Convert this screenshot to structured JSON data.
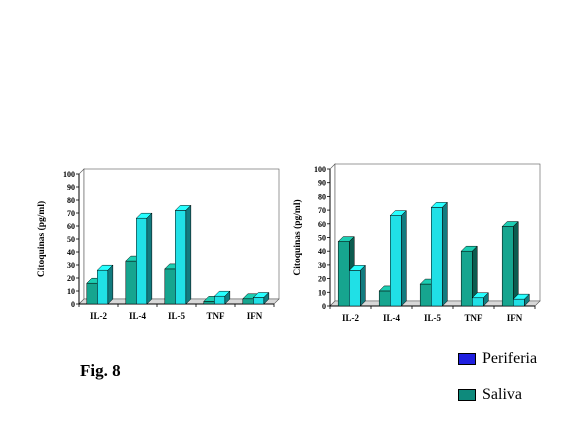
{
  "caption": "Fig. 8",
  "legend": [
    {
      "label": "Periferia",
      "color": "#1f1fe0"
    },
    {
      "label": "Saliva",
      "color": "#0e8a7c"
    }
  ],
  "colors": {
    "periferia": "#20e0e6",
    "saliva": "#16a58f"
  },
  "chart_data": [
    {
      "type": "bar",
      "categories": [
        "IL-2",
        "IL-4",
        "IL-5",
        "TNF",
        "IFN"
      ],
      "series": [
        {
          "values": [
            16,
            33,
            27,
            2,
            4
          ]
        },
        {
          "values": [
            26,
            66,
            72,
            6,
            5
          ]
        }
      ],
      "ylabel": "Citoquinas (pg/ml)",
      "ylim": [
        0,
        100
      ],
      "yticks": [
        0,
        10,
        20,
        30,
        40,
        50,
        60,
        70,
        80,
        90,
        100
      ]
    },
    {
      "type": "bar",
      "categories": [
        "IL-2",
        "IL-4",
        "IL-5",
        "TNF",
        "IFN"
      ],
      "series": [
        {
          "values": [
            47,
            11,
            16,
            40,
            58
          ]
        },
        {
          "values": [
            26,
            66,
            72,
            6,
            5
          ]
        }
      ],
      "ylabel": "Citoquinas (pg/ml)",
      "ylim": [
        0,
        100
      ],
      "yticks": [
        0,
        10,
        20,
        30,
        40,
        50,
        60,
        70,
        80,
        90,
        100
      ]
    }
  ]
}
